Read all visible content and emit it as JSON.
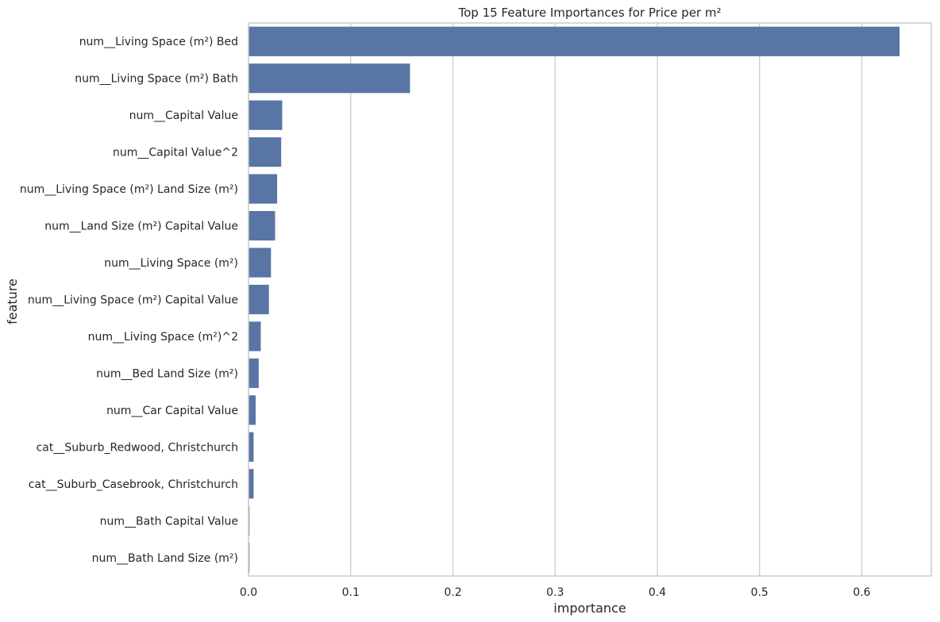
{
  "chart_data": {
    "type": "bar",
    "orientation": "horizontal",
    "title": "Top 15 Feature Importances for Price per m²",
    "xlabel": "importance",
    "ylabel": "feature",
    "xlim": [
      0,
      0.668
    ],
    "xticks": [
      0.0,
      0.1,
      0.2,
      0.3,
      0.4,
      0.5,
      0.6
    ],
    "xtick_labels": [
      "0.0",
      "0.1",
      "0.2",
      "0.3",
      "0.4",
      "0.5",
      "0.6"
    ],
    "grid": "x",
    "bar_color": "#5875a4",
    "grid_color": "#cccccc",
    "spine_color": "#cccccc",
    "categories": [
      "num__Living Space (m²) Bed",
      "num__Living Space (m²) Bath",
      "num__Capital Value",
      "num__Capital Value^2",
      "num__Living Space (m²) Land Size (m²)",
      "num__Land Size (m²) Capital Value",
      "num__Living Space (m²)",
      "num__Living Space (m²) Capital Value",
      "num__Living Space (m²)^2",
      "num__Bed Land Size (m²)",
      "num__Car Capital Value",
      "cat__Suburb_Redwood, Christchurch",
      "cat__Suburb_Casebrook, Christchurch",
      "num__Bath Capital Value",
      "num__Bath Land Size (m²)"
    ],
    "values": [
      0.637,
      0.158,
      0.033,
      0.032,
      0.028,
      0.026,
      0.022,
      0.02,
      0.012,
      0.01,
      0.007,
      0.005,
      0.005,
      0.001,
      0.001
    ]
  }
}
